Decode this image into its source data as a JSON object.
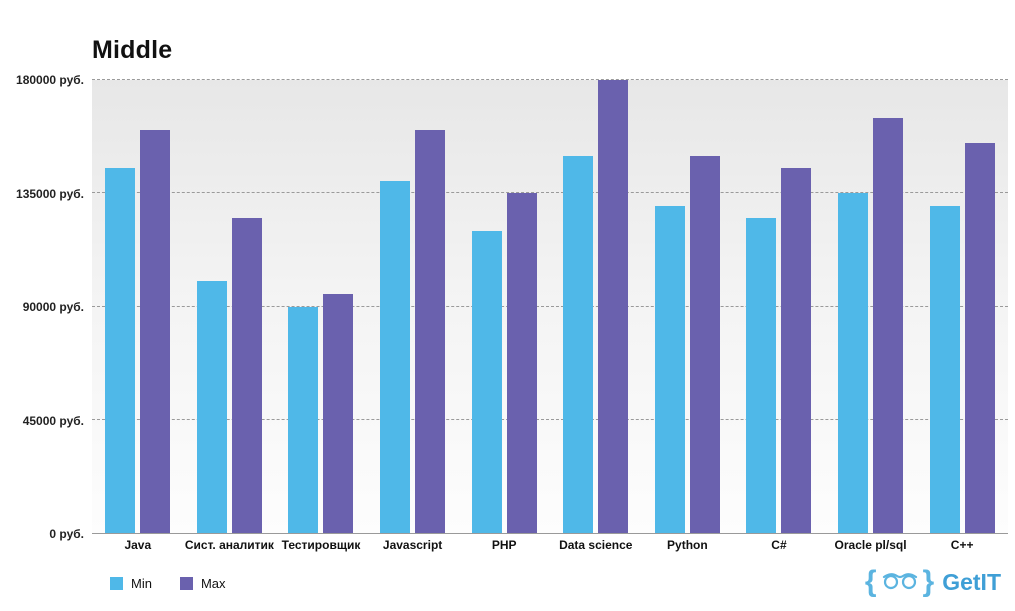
{
  "chart_data": {
    "type": "bar",
    "title": "Middle",
    "categories": [
      "Java",
      "Сист. аналитик",
      "Тестировщик",
      "Javascript",
      "PHP",
      "Data science",
      "Python",
      "C#",
      "Oracle pl/sql",
      "C++"
    ],
    "series": [
      {
        "name": "Min",
        "color": "#4fb8e8",
        "values": [
          145000,
          100000,
          90000,
          140000,
          120000,
          150000,
          130000,
          125000,
          135000,
          130000
        ]
      },
      {
        "name": "Max",
        "color": "#6a61ae",
        "values": [
          160000,
          125000,
          95000,
          160000,
          135000,
          180000,
          150000,
          145000,
          165000,
          155000
        ]
      }
    ],
    "ylim": [
      0,
      180000
    ],
    "yticks": [
      0,
      45000,
      90000,
      135000,
      180000
    ],
    "ytick_labels": [
      "0 руб.",
      "45000 руб.",
      "90000 руб.",
      "135000 руб.",
      "180000 руб."
    ],
    "grid": "dashed-horizontal",
    "legend_position": "bottom-left"
  },
  "branding": {
    "logo_text": "GetIT",
    "brace_left": "{",
    "brace_right": "}",
    "brand_blue": "#3f9fd6"
  }
}
